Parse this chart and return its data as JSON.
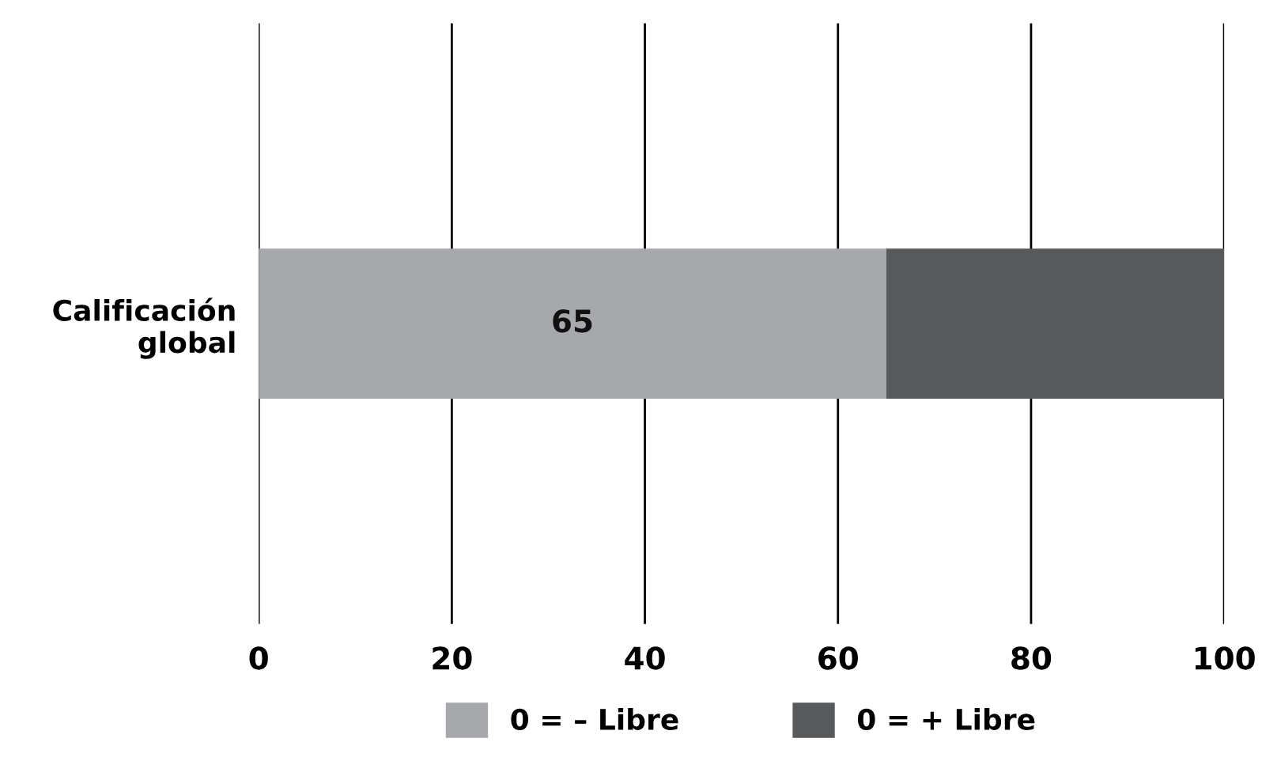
{
  "chart_data": {
    "type": "bar",
    "orientation": "horizontal",
    "stacked": true,
    "categories": [
      "Calificación\nglobal"
    ],
    "series": [
      {
        "name": "0 = – Libre",
        "color": "#a7a8ab",
        "values": [
          65
        ],
        "value_labels": [
          "65"
        ]
      },
      {
        "name": "0 = + Libre",
        "color": "#58595b",
        "values": [
          35
        ],
        "value_labels": [
          null
        ]
      }
    ],
    "xlim": [
      0,
      100
    ],
    "xticks": [
      0,
      20,
      40,
      60,
      80,
      100
    ],
    "grid": "x",
    "legend": "bottom"
  }
}
